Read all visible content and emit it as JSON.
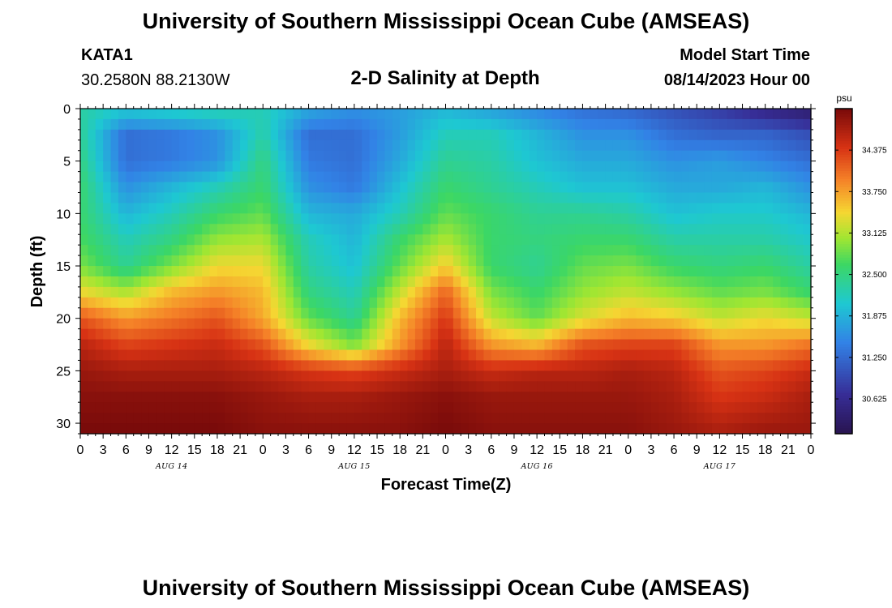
{
  "page": {
    "title": "University of Southern Mississippi Ocean Cube (AMSEAS)",
    "repeat_title": "University of Southern Mississippi Ocean Cube (AMSEAS)"
  },
  "header": {
    "station_id": "KATA1",
    "coordinates": "30.2580N  88.2130W",
    "center_title": "2-D Salinity at Depth",
    "model_start_label": "Model Start Time",
    "model_start_value": "08/14/2023 Hour 00"
  },
  "chart_data": {
    "type": "heatmap",
    "title": "2-D Salinity at Depth",
    "xlabel": "Forecast Time(Z)",
    "ylabel": "Depth (ft)",
    "xlim": [
      0,
      96
    ],
    "ylim": [
      0,
      31
    ],
    "y_inverted": true,
    "x_tick_hours": [
      0,
      3,
      6,
      9,
      12,
      15,
      18,
      21,
      24,
      27,
      30,
      33,
      36,
      39,
      42,
      45,
      48,
      51,
      54,
      57,
      60,
      63,
      66,
      69,
      72,
      75,
      78,
      81,
      84,
      87,
      90,
      93,
      96
    ],
    "x_tick_labels": [
      "0",
      "3",
      "6",
      "9",
      "12",
      "15",
      "18",
      "21",
      "0",
      "3",
      "6",
      "9",
      "12",
      "15",
      "18",
      "21",
      "0",
      "3",
      "6",
      "9",
      "12",
      "15",
      "18",
      "21",
      "0",
      "3",
      "6",
      "9",
      "12",
      "15",
      "18",
      "21",
      "0"
    ],
    "date_labels": [
      {
        "text": "AUG 14",
        "hour": 12
      },
      {
        "text": "AUG 15",
        "hour": 36
      },
      {
        "text": "AUG 16",
        "hour": 60
      },
      {
        "text": "AUG 17",
        "hour": 84
      }
    ],
    "y_ticks": [
      0,
      5,
      10,
      15,
      20,
      25,
      30
    ],
    "y_tick_labels": [
      "0",
      "5",
      "10",
      "15",
      "20",
      "25",
      "30"
    ],
    "colorbar": {
      "unit": "psu",
      "range": [
        30.1,
        35.0
      ],
      "ticks": [
        34.375,
        33.75,
        33.125,
        32.5,
        31.875,
        31.25,
        30.625
      ],
      "tick_labels": [
        "34.375",
        "33.750",
        "33.125",
        "32.500",
        "31.875",
        "31.250",
        "30.625"
      ]
    },
    "grid": {
      "times_hours": [
        0,
        6,
        12,
        18,
        24,
        30,
        36,
        42,
        48,
        54,
        60,
        66,
        72,
        78,
        84,
        90,
        96
      ],
      "depths_ft": [
        0,
        2.5,
        5,
        7.5,
        10,
        12.5,
        15,
        17.5,
        20,
        22.5,
        25,
        27.5,
        31
      ],
      "salinity_psu": [
        [
          32.3,
          32.1,
          32.2,
          32.3,
          32.2,
          31.8,
          31.6,
          31.7,
          31.9,
          31.7,
          31.5,
          31.3,
          31.2,
          31.0,
          30.8,
          30.5,
          30.3
        ],
        [
          32.4,
          31.3,
          31.4,
          31.6,
          32.3,
          31.3,
          31.3,
          31.7,
          32.2,
          32.2,
          31.9,
          31.6,
          31.6,
          31.3,
          31.2,
          31.2,
          31.0
        ],
        [
          32.5,
          31.3,
          31.4,
          31.6,
          32.5,
          31.4,
          31.3,
          31.8,
          32.4,
          32.3,
          32.0,
          31.8,
          31.8,
          31.6,
          31.7,
          31.5,
          31.3
        ],
        [
          32.6,
          31.6,
          31.9,
          32.2,
          32.6,
          31.6,
          31.4,
          32.0,
          32.6,
          32.4,
          32.2,
          32.0,
          32.0,
          31.8,
          31.8,
          31.9,
          31.6
        ],
        [
          32.6,
          31.9,
          32.2,
          32.6,
          32.8,
          31.9,
          31.8,
          32.2,
          32.8,
          32.6,
          32.4,
          32.4,
          32.3,
          32.0,
          32.1,
          32.1,
          31.9
        ],
        [
          32.7,
          32.2,
          32.5,
          33.0,
          33.1,
          32.2,
          31.9,
          32.6,
          33.1,
          32.6,
          32.5,
          32.6,
          32.6,
          32.3,
          32.3,
          32.3,
          32.1
        ],
        [
          32.9,
          32.4,
          32.9,
          33.4,
          33.4,
          32.3,
          32.0,
          32.8,
          33.5,
          32.6,
          32.4,
          32.8,
          32.9,
          32.6,
          32.5,
          32.6,
          32.3
        ],
        [
          33.4,
          33.1,
          33.6,
          33.8,
          33.6,
          32.5,
          32.2,
          33.2,
          34.1,
          32.9,
          32.6,
          33.0,
          33.2,
          33.0,
          32.8,
          32.9,
          32.6
        ],
        [
          34.2,
          33.8,
          34.0,
          34.2,
          33.7,
          32.8,
          32.4,
          33.6,
          34.4,
          33.2,
          32.8,
          33.3,
          33.6,
          33.5,
          33.2,
          33.4,
          33.2
        ],
        [
          34.6,
          34.3,
          34.4,
          34.5,
          34.2,
          33.4,
          32.9,
          33.8,
          34.6,
          33.8,
          33.6,
          34.2,
          34.3,
          34.3,
          33.8,
          33.8,
          34.0
        ],
        [
          34.8,
          34.7,
          34.7,
          34.7,
          34.6,
          34.4,
          34.3,
          34.5,
          34.7,
          34.5,
          34.6,
          34.6,
          34.7,
          34.6,
          34.2,
          34.3,
          34.5
        ],
        [
          34.9,
          34.9,
          34.9,
          34.9,
          34.8,
          34.7,
          34.7,
          34.8,
          34.9,
          34.8,
          34.8,
          34.8,
          34.8,
          34.7,
          34.4,
          34.5,
          34.7
        ],
        [
          35.0,
          35.0,
          35.0,
          35.0,
          34.9,
          34.9,
          34.9,
          34.9,
          35.0,
          34.9,
          34.9,
          34.9,
          34.9,
          34.8,
          34.7,
          34.8,
          34.8
        ]
      ]
    }
  }
}
